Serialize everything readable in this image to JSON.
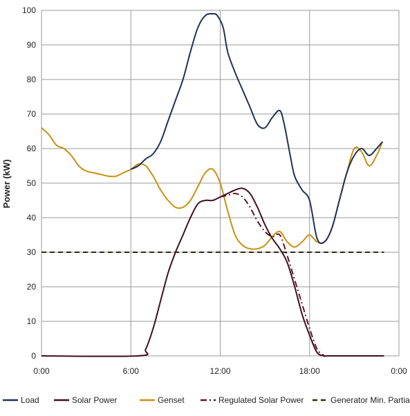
{
  "chart_data": {
    "type": "line",
    "title": "",
    "xlabel": "",
    "ylabel": "Power (kW)",
    "xlim": [
      0,
      24
    ],
    "ylim": [
      0,
      100
    ],
    "x_ticks": [
      0,
      6,
      12,
      18,
      24
    ],
    "x_tick_labels": [
      "0:00",
      "6:00",
      "12:00",
      "18:00",
      "0:00"
    ],
    "y_ticks": [
      0,
      10,
      20,
      30,
      40,
      50,
      60,
      70,
      80,
      90,
      100
    ],
    "y_tick_labels": [
      "0",
      "10",
      "20",
      "30",
      "40",
      "50",
      "60",
      "70",
      "80",
      "90",
      "100"
    ],
    "grid": "vertical and horizontal major gridlines",
    "legend_position": "bottom",
    "series": [
      {
        "name": "Load",
        "color": "#1f3157",
        "dash": "solid",
        "x": [
          6.0,
          6.5,
          7.0,
          7.5,
          8.0,
          8.5,
          9.0,
          9.5,
          10.0,
          10.5,
          11.0,
          11.5,
          11.8,
          12.2,
          12.5,
          13.0,
          13.5,
          14.0,
          14.5,
          15.0,
          15.5,
          16.0,
          16.3,
          16.7,
          17.0,
          17.5,
          18.0,
          18.5,
          19.0,
          19.5,
          20.0,
          20.5,
          21.0,
          21.5,
          22.0,
          22.5,
          22.9
        ],
        "y": [
          54,
          55,
          57,
          58.5,
          62,
          68,
          74,
          80,
          88,
          95,
          98.5,
          99,
          98.5,
          95,
          88,
          82,
          77,
          72,
          67,
          66,
          69,
          71,
          67,
          58,
          52,
          48,
          45,
          34,
          33,
          37,
          45,
          53,
          58,
          60,
          58,
          60,
          62
        ]
      },
      {
        "name": "Solar Power",
        "color": "#3f0d1e",
        "dash": "solid",
        "x": [
          0,
          6.5,
          7.0,
          7.5,
          8.0,
          8.5,
          9.0,
          9.5,
          10.0,
          10.5,
          11.0,
          11.5,
          12.0,
          12.5,
          13.0,
          13.5,
          14.0,
          14.5,
          15.0,
          15.5,
          16.0,
          16.5,
          17.0,
          17.5,
          18.0,
          18.5,
          19.0,
          19.3,
          23.0
        ],
        "y": [
          0,
          0,
          2,
          8,
          16,
          24,
          30,
          35,
          40,
          44,
          45,
          45,
          46,
          47,
          48,
          48.5,
          47,
          43,
          38,
          34,
          31,
          27,
          20,
          12,
          6,
          1,
          0,
          0,
          0
        ]
      },
      {
        "name": "Genset",
        "color": "#c8900e",
        "dash": "solid",
        "x": [
          0,
          0.5,
          1.0,
          1.5,
          2.0,
          2.5,
          3.0,
          3.5,
          4.0,
          4.5,
          5.0,
          5.5,
          6.0,
          6.5,
          7.0,
          7.5,
          8.0,
          8.5,
          9.0,
          9.5,
          10.0,
          10.5,
          11.0,
          11.5,
          12.0,
          12.5,
          13.0,
          13.5,
          14.0,
          14.5,
          15.0,
          15.5,
          16.0,
          16.5,
          17.0,
          17.5,
          18.0,
          18.5,
          19.0,
          19.5,
          20.0,
          20.5,
          21.0,
          21.5,
          22.0,
          22.5,
          22.9
        ],
        "y": [
          66,
          64,
          61,
          60,
          58,
          55,
          53.5,
          53,
          52.5,
          52,
          52,
          53,
          54,
          55.5,
          55,
          52,
          48,
          45,
          43,
          43,
          45,
          49,
          53,
          54,
          50,
          42,
          35,
          32,
          31,
          31,
          32,
          34.5,
          36,
          33,
          31.5,
          33,
          35,
          33,
          33,
          37,
          45,
          53,
          60,
          59,
          55,
          58,
          62
        ]
      },
      {
        "name": "Regulated Solar Power",
        "color": "#5a1530",
        "dash": "dashdot",
        "x": [
          12.0,
          12.5,
          13.0,
          13.5,
          14.0,
          14.5,
          15.0,
          15.5,
          16.0,
          16.5,
          17.0,
          17.5,
          18.0,
          18.5,
          19.0
        ],
        "y": [
          46,
          46.5,
          47,
          46,
          43,
          39,
          36,
          34.5,
          35,
          29,
          22,
          15,
          8,
          2,
          0
        ]
      },
      {
        "name": "Generator Min. Partial Load",
        "color": "#2e2a10",
        "dash": "dashed",
        "x": [
          0,
          23
        ],
        "y": [
          30,
          30
        ]
      }
    ]
  }
}
